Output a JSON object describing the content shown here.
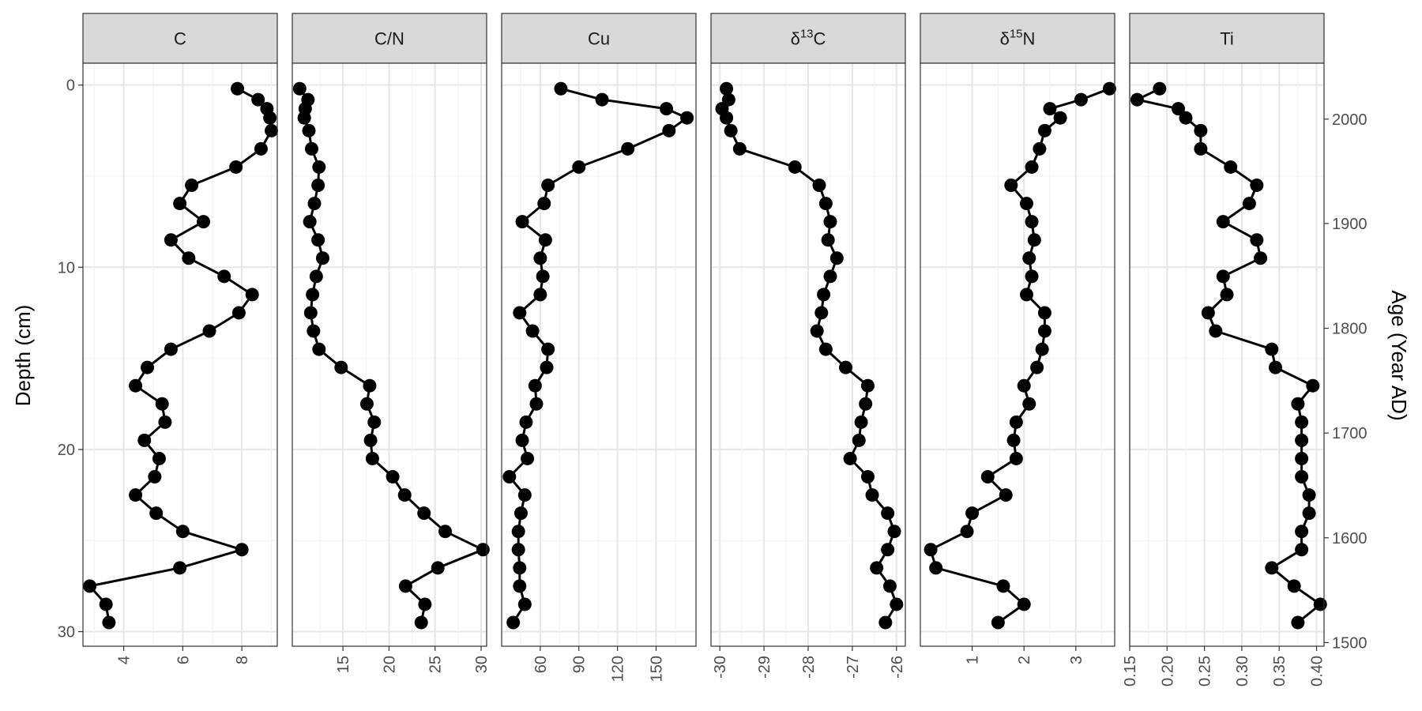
{
  "chart_data": {
    "type": "line",
    "ylabel": "Depth (cm)",
    "ylabel_right": "Age (Year AD)",
    "y_reversed": true,
    "ylim": [
      -1.2,
      30.8
    ],
    "y_ticks": [
      0,
      10,
      20,
      30
    ],
    "y_tick_labels": [
      "0",
      "10",
      "20",
      "30"
    ],
    "y2_ticks": [
      2000,
      1900,
      1800,
      1700,
      1600,
      1500
    ],
    "y2_tick_labels": [
      "2000",
      "1900",
      "1800",
      "1700",
      "1600",
      "1500"
    ],
    "y2_tick_depths": [
      1.87,
      7.6,
      13.35,
      19.1,
      24.85,
      30.6
    ],
    "grid": true,
    "depth": [
      0.2,
      0.8,
      1.3,
      1.8,
      2.5,
      3.5,
      4.5,
      5.5,
      6.5,
      7.5,
      8.5,
      9.5,
      10.5,
      11.5,
      12.5,
      13.5,
      14.5,
      15.5,
      16.5,
      17.5,
      18.5,
      19.5,
      20.5,
      21.5,
      22.5,
      23.5,
      24.5,
      25.5,
      26.5,
      27.5,
      28.5,
      29.5
    ],
    "panels": [
      {
        "strip": "C",
        "strip_main": "C",
        "strip_sup": "",
        "strip_tail": "",
        "xlim": [
          2.62,
          9.2
        ],
        "x_ticks": [
          4,
          6,
          8
        ],
        "x_tick_labels": [
          "4",
          "6",
          "8"
        ],
        "values": [
          7.85,
          8.55,
          8.85,
          8.95,
          9.0,
          8.65,
          7.8,
          6.3,
          5.9,
          6.7,
          5.6,
          6.2,
          7.4,
          8.35,
          7.9,
          6.9,
          5.6,
          4.8,
          4.4,
          5.3,
          5.4,
          4.7,
          5.2,
          5.05,
          4.4,
          5.1,
          6.0,
          8.0,
          5.9,
          2.85,
          3.4,
          3.5
        ]
      },
      {
        "strip": "C/N",
        "strip_main": "C/N",
        "strip_sup": "",
        "strip_tail": "",
        "xlim": [
          9.5,
          30.6
        ],
        "x_ticks": [
          15,
          20,
          25,
          30
        ],
        "x_tick_labels": [
          "15",
          "20",
          "25",
          "30"
        ],
        "values": [
          10.3,
          11.2,
          10.9,
          10.8,
          11.3,
          11.6,
          12.4,
          12.3,
          11.9,
          11.4,
          12.3,
          12.8,
          12.1,
          11.7,
          11.5,
          11.8,
          12.4,
          14.8,
          17.9,
          17.6,
          18.4,
          18.0,
          18.2,
          20.4,
          21.7,
          23.8,
          26.1,
          30.2,
          25.3,
          21.8,
          23.9,
          23.5
        ]
      },
      {
        "strip": "Cu",
        "strip_main": "Cu",
        "strip_sup": "",
        "strip_tail": "",
        "xlim": [
          30.0,
          181.0
        ],
        "x_ticks": [
          60,
          90,
          120,
          150
        ],
        "x_tick_labels": [
          "60",
          "90",
          "120",
          "150"
        ],
        "values": [
          76,
          108,
          158,
          174,
          160,
          128,
          90,
          66,
          63,
          46,
          64,
          60,
          62,
          60,
          44,
          54,
          66,
          65,
          56,
          57,
          49,
          46,
          50,
          36,
          48,
          45,
          43,
          43,
          44,
          44,
          48,
          39
        ]
      },
      {
        "strip": "δ13C",
        "strip_main": "δ",
        "strip_sup": "13",
        "strip_tail": "C",
        "xlim": [
          -30.2,
          -25.8
        ],
        "x_ticks": [
          -30,
          -29,
          -28,
          -27,
          -26
        ],
        "x_tick_labels": [
          "-30",
          "-29",
          "-28",
          "-27",
          "-26"
        ],
        "values": [
          -29.85,
          -29.8,
          -29.95,
          -29.85,
          -29.75,
          -29.55,
          -28.3,
          -27.75,
          -27.6,
          -27.5,
          -27.55,
          -27.35,
          -27.5,
          -27.65,
          -27.7,
          -27.8,
          -27.6,
          -27.15,
          -26.65,
          -26.7,
          -26.8,
          -26.85,
          -27.05,
          -26.65,
          -26.55,
          -26.2,
          -26.05,
          -26.2,
          -26.45,
          -26.15,
          -26.0,
          -26.25
        ]
      },
      {
        "strip": "δ15N",
        "strip_main": "δ",
        "strip_sup": "15",
        "strip_tail": "N",
        "xlim": [
          0.0,
          3.75
        ],
        "x_ticks": [
          1,
          2,
          3
        ],
        "x_tick_labels": [
          "1",
          "2",
          "3"
        ],
        "values": [
          3.65,
          3.1,
          2.5,
          2.7,
          2.4,
          2.3,
          2.15,
          1.75,
          2.05,
          2.15,
          2.2,
          2.1,
          2.15,
          2.05,
          2.4,
          2.4,
          2.35,
          2.25,
          2.0,
          2.1,
          1.85,
          1.8,
          1.85,
          1.3,
          1.65,
          1.0,
          0.9,
          0.2,
          0.3,
          1.6,
          2.0,
          1.5
        ]
      },
      {
        "strip": "Ti",
        "strip_main": "Ti",
        "strip_sup": "",
        "strip_tail": "",
        "xlim": [
          0.15,
          0.41
        ],
        "x_ticks": [
          0.15,
          0.2,
          0.25,
          0.3,
          0.35,
          0.4
        ],
        "x_tick_labels": [
          "0.15",
          "0.20",
          "0.25",
          "0.30",
          "0.35",
          "0.40"
        ],
        "values": [
          0.19,
          0.16,
          0.215,
          0.225,
          0.245,
          0.245,
          0.285,
          0.32,
          0.31,
          0.275,
          0.32,
          0.325,
          0.275,
          0.28,
          0.255,
          0.265,
          0.34,
          0.345,
          0.395,
          0.375,
          0.38,
          0.38,
          0.38,
          0.38,
          0.39,
          0.39,
          0.38,
          0.38,
          0.34,
          0.37,
          0.405,
          0.375
        ]
      }
    ]
  }
}
